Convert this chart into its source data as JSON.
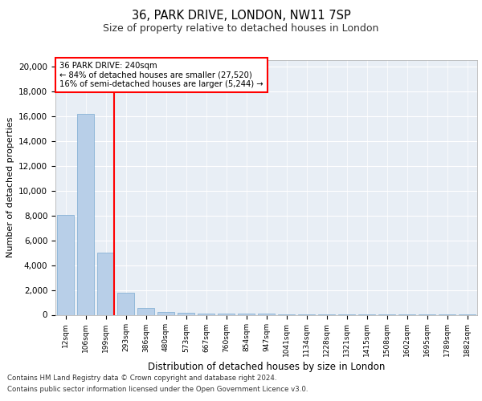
{
  "title1": "36, PARK DRIVE, LONDON, NW11 7SP",
  "title2": "Size of property relative to detached houses in London",
  "xlabel": "Distribution of detached houses by size in London",
  "ylabel": "Number of detached properties",
  "categories": [
    "12sqm",
    "106sqm",
    "199sqm",
    "293sqm",
    "386sqm",
    "480sqm",
    "573sqm",
    "667sqm",
    "760sqm",
    "854sqm",
    "947sqm",
    "1041sqm",
    "1134sqm",
    "1228sqm",
    "1321sqm",
    "1415sqm",
    "1508sqm",
    "1602sqm",
    "1695sqm",
    "1789sqm",
    "1882sqm"
  ],
  "values": [
    8050,
    16200,
    5000,
    1750,
    550,
    250,
    150,
    100,
    100,
    80,
    80,
    60,
    60,
    50,
    40,
    40,
    30,
    30,
    20,
    20,
    10
  ],
  "bar_color": "#b8cfe8",
  "bar_edge_color": "#7aaad0",
  "property_line_x": 2.43,
  "annotation_title": "36 PARK DRIVE: 240sqm",
  "annotation_line1": "← 84% of detached houses are smaller (27,520)",
  "annotation_line2": "16% of semi-detached houses are larger (5,244) →",
  "ylim": [
    0,
    20500
  ],
  "yticks": [
    0,
    2000,
    4000,
    6000,
    8000,
    10000,
    12000,
    14000,
    16000,
    18000,
    20000
  ],
  "background_color": "#e8eef5",
  "footer1": "Contains HM Land Registry data © Crown copyright and database right 2024.",
  "footer2": "Contains public sector information licensed under the Open Government Licence v3.0."
}
